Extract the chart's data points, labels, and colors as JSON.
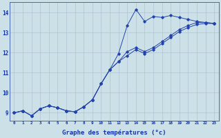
{
  "xlabel": "Graphe des températures (°c)",
  "bg_color": "#cce0e8",
  "line_color": "#2244aa",
  "grid_color": "#aabccc",
  "axis_color": "#1133aa",
  "xlim": [
    -0.5,
    23.5
  ],
  "ylim": [
    8.6,
    14.5
  ],
  "xticks": [
    0,
    1,
    2,
    3,
    4,
    5,
    6,
    7,
    8,
    9,
    10,
    11,
    12,
    13,
    14,
    15,
    16,
    17,
    18,
    19,
    20,
    21,
    22,
    23
  ],
  "yticks": [
    9,
    10,
    11,
    12,
    13,
    14
  ],
  "series": [
    [
      9.0,
      9.1,
      8.85,
      9.2,
      9.35,
      9.25,
      9.1,
      9.05,
      9.3,
      9.65,
      10.45,
      11.15,
      11.95,
      13.35,
      14.15,
      13.55,
      13.8,
      13.75,
      13.85,
      13.75,
      13.65,
      13.55,
      13.5,
      13.45
    ],
    [
      9.0,
      9.1,
      8.85,
      9.2,
      9.35,
      9.25,
      9.1,
      9.05,
      9.3,
      9.65,
      10.45,
      11.15,
      11.55,
      12.05,
      12.25,
      12.05,
      12.25,
      12.55,
      12.85,
      13.15,
      13.35,
      13.5,
      13.5,
      13.45
    ],
    [
      9.0,
      9.1,
      8.85,
      9.2,
      9.35,
      9.25,
      9.1,
      9.05,
      9.3,
      9.65,
      10.45,
      11.15,
      11.55,
      11.85,
      12.15,
      11.95,
      12.15,
      12.45,
      12.75,
      13.05,
      13.25,
      13.4,
      13.45,
      13.45
    ]
  ]
}
